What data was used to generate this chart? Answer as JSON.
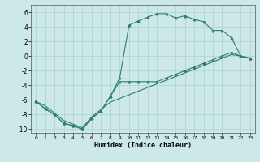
{
  "xlabel": "Humidex (Indice chaleur)",
  "xlim": [
    -0.5,
    23.5
  ],
  "ylim": [
    -10.5,
    7.0
  ],
  "xticks": [
    0,
    1,
    2,
    3,
    4,
    5,
    6,
    7,
    8,
    9,
    10,
    11,
    12,
    13,
    14,
    15,
    16,
    17,
    18,
    19,
    20,
    21,
    22,
    23
  ],
  "yticks": [
    -10,
    -8,
    -6,
    -4,
    -2,
    0,
    2,
    4,
    6
  ],
  "bg_color": "#cce8e8",
  "grid_color": "#b0d4d4",
  "line_color": "#2e7d6e",
  "curve1_x": [
    0,
    1,
    2,
    3,
    4,
    5,
    6,
    7,
    8,
    9,
    10,
    11,
    12,
    13,
    14,
    15,
    16,
    17,
    18,
    19,
    20,
    21,
    22,
    23
  ],
  "curve1_y": [
    -6.2,
    -7.2,
    -8.0,
    -9.2,
    -9.5,
    -10.0,
    -8.5,
    -7.5,
    -5.5,
    -3.0,
    4.2,
    4.8,
    5.3,
    5.8,
    5.8,
    5.2,
    5.5,
    5.0,
    4.7,
    3.5,
    3.5,
    2.5,
    0.0,
    -0.3
  ],
  "curve2_x": [
    0,
    1,
    2,
    3,
    4,
    5,
    6,
    7,
    8,
    9,
    10,
    11,
    12,
    13,
    14,
    15,
    16,
    17,
    18,
    19,
    20,
    21,
    22,
    23
  ],
  "curve2_y": [
    -6.2,
    -7.2,
    -8.0,
    -9.2,
    -9.5,
    -10.0,
    -8.5,
    -7.5,
    -5.5,
    -3.5,
    -3.5,
    -3.5,
    -3.5,
    -3.5,
    -3.0,
    -2.5,
    -2.0,
    -1.5,
    -1.0,
    -0.5,
    0.0,
    0.5,
    0.0,
    -0.3
  ],
  "curve3_x": [
    0,
    1,
    2,
    3,
    4,
    5,
    6,
    7,
    8,
    9,
    10,
    11,
    12,
    13,
    14,
    15,
    16,
    17,
    18,
    19,
    20,
    21,
    22,
    23
  ],
  "curve3_y": [
    -6.2,
    -6.8,
    -7.8,
    -8.8,
    -9.3,
    -9.8,
    -8.3,
    -7.3,
    -6.3,
    -5.8,
    -5.3,
    -4.8,
    -4.3,
    -3.8,
    -3.3,
    -2.8,
    -2.3,
    -1.8,
    -1.3,
    -0.8,
    -0.3,
    0.2,
    0.0,
    -0.3
  ],
  "figsize": [
    3.2,
    2.0
  ],
  "dpi": 100
}
